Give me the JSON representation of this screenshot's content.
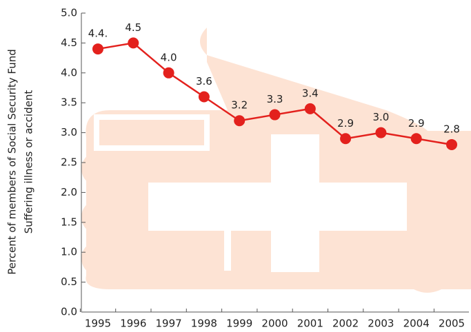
{
  "chart_data": {
    "type": "line",
    "y_label": [
      "Percent of members of Social Security Fund",
      "Suffering illness or accident"
    ],
    "categories": [
      "1995",
      "1996",
      "1997",
      "1998",
      "1999",
      "2000",
      "2001",
      "2002",
      "2003",
      "2004",
      "2005"
    ],
    "values": [
      4.4,
      4.5,
      4.0,
      3.6,
      3.2,
      3.3,
      3.4,
      2.9,
      3.0,
      2.9,
      2.8
    ],
    "value_labels": [
      "4.4.",
      "4.5",
      "4.0",
      "3.6",
      "3.2",
      "3.3",
      "3.4",
      "2.9",
      "3.0",
      "2.9",
      "2.8"
    ],
    "color": "#e3211d",
    "ylim": [
      0,
      5
    ],
    "yticks": [
      {
        "value": 0,
        "label": "0.0"
      },
      0.5,
      {
        "value": 1,
        "label": "1.0"
      },
      1.5,
      {
        "value": 2,
        "label": "2.0"
      },
      2.5,
      {
        "value": 3,
        "label": "3.0"
      },
      3.5,
      {
        "value": 4,
        "label": "4.0"
      },
      4.5,
      {
        "value": 5,
        "label": "5.0"
      }
    ]
  }
}
